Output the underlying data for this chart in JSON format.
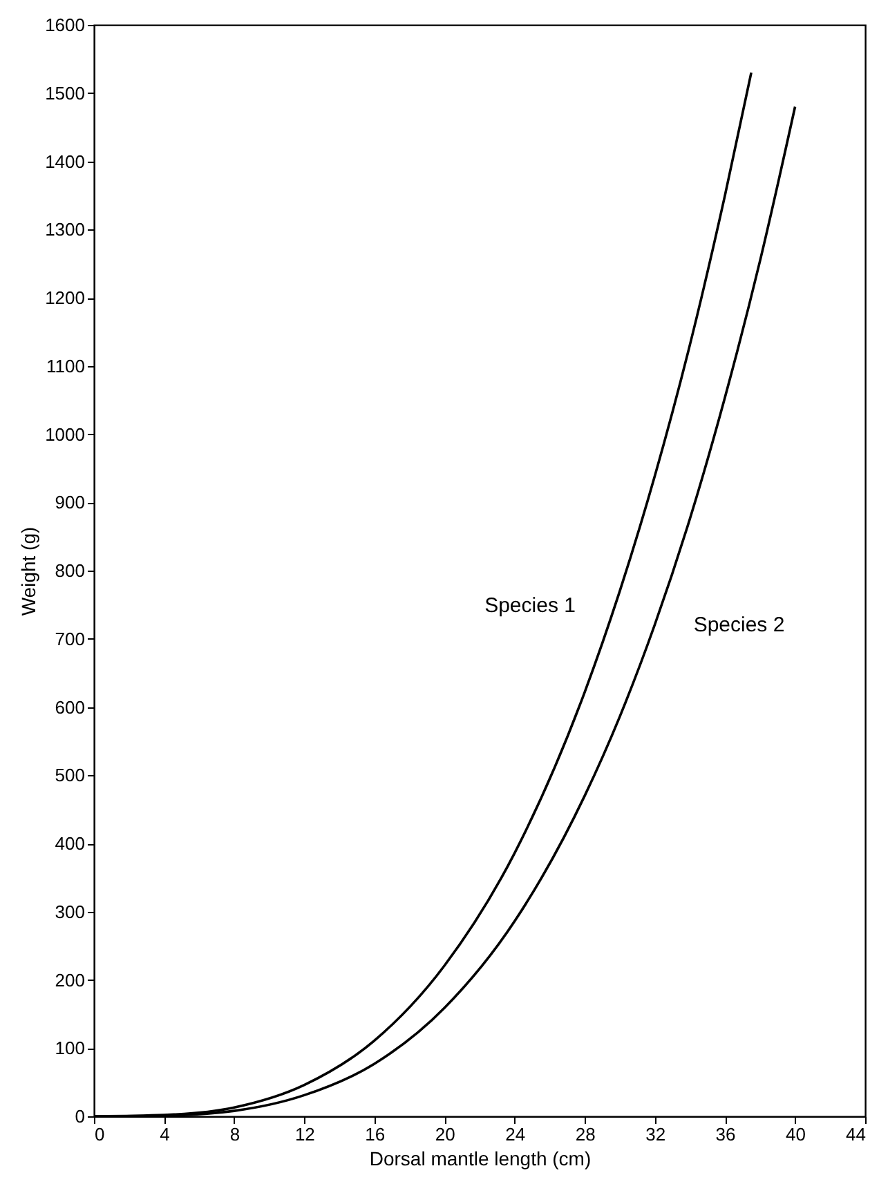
{
  "chart_data": {
    "type": "line",
    "xlabel": "Dorsal mantle length (cm)",
    "ylabel": "Weight (g)",
    "xlim": [
      0,
      44
    ],
    "xticks": [
      0,
      4,
      8,
      12,
      16,
      20,
      24,
      28,
      32,
      36,
      40,
      44
    ],
    "ylim": [
      0,
      1600
    ],
    "yticks": [
      0,
      100,
      200,
      300,
      400,
      500,
      600,
      700,
      800,
      900,
      1000,
      1100,
      1200,
      1300,
      1400,
      1500,
      1600
    ],
    "grid": false,
    "series": [
      {
        "name": "Species 1",
        "color": "#000000",
        "x": [
          0,
          4,
          8,
          12,
          16,
          20,
          24,
          28,
          30,
          32,
          34,
          36,
          37.5
        ],
        "values": [
          0,
          2,
          13,
          46,
          111,
          221,
          386,
          622,
          770,
          939,
          1131,
          1350,
          1530
        ]
      },
      {
        "name": "Species 2",
        "color": "#000000",
        "x": [
          0,
          4,
          8,
          12,
          16,
          20,
          24,
          28,
          30,
          32,
          34,
          36,
          38,
          40
        ],
        "values": [
          0,
          1,
          8,
          31,
          77,
          159,
          286,
          470,
          586,
          721,
          876,
          1054,
          1254,
          1480
        ]
      }
    ]
  }
}
